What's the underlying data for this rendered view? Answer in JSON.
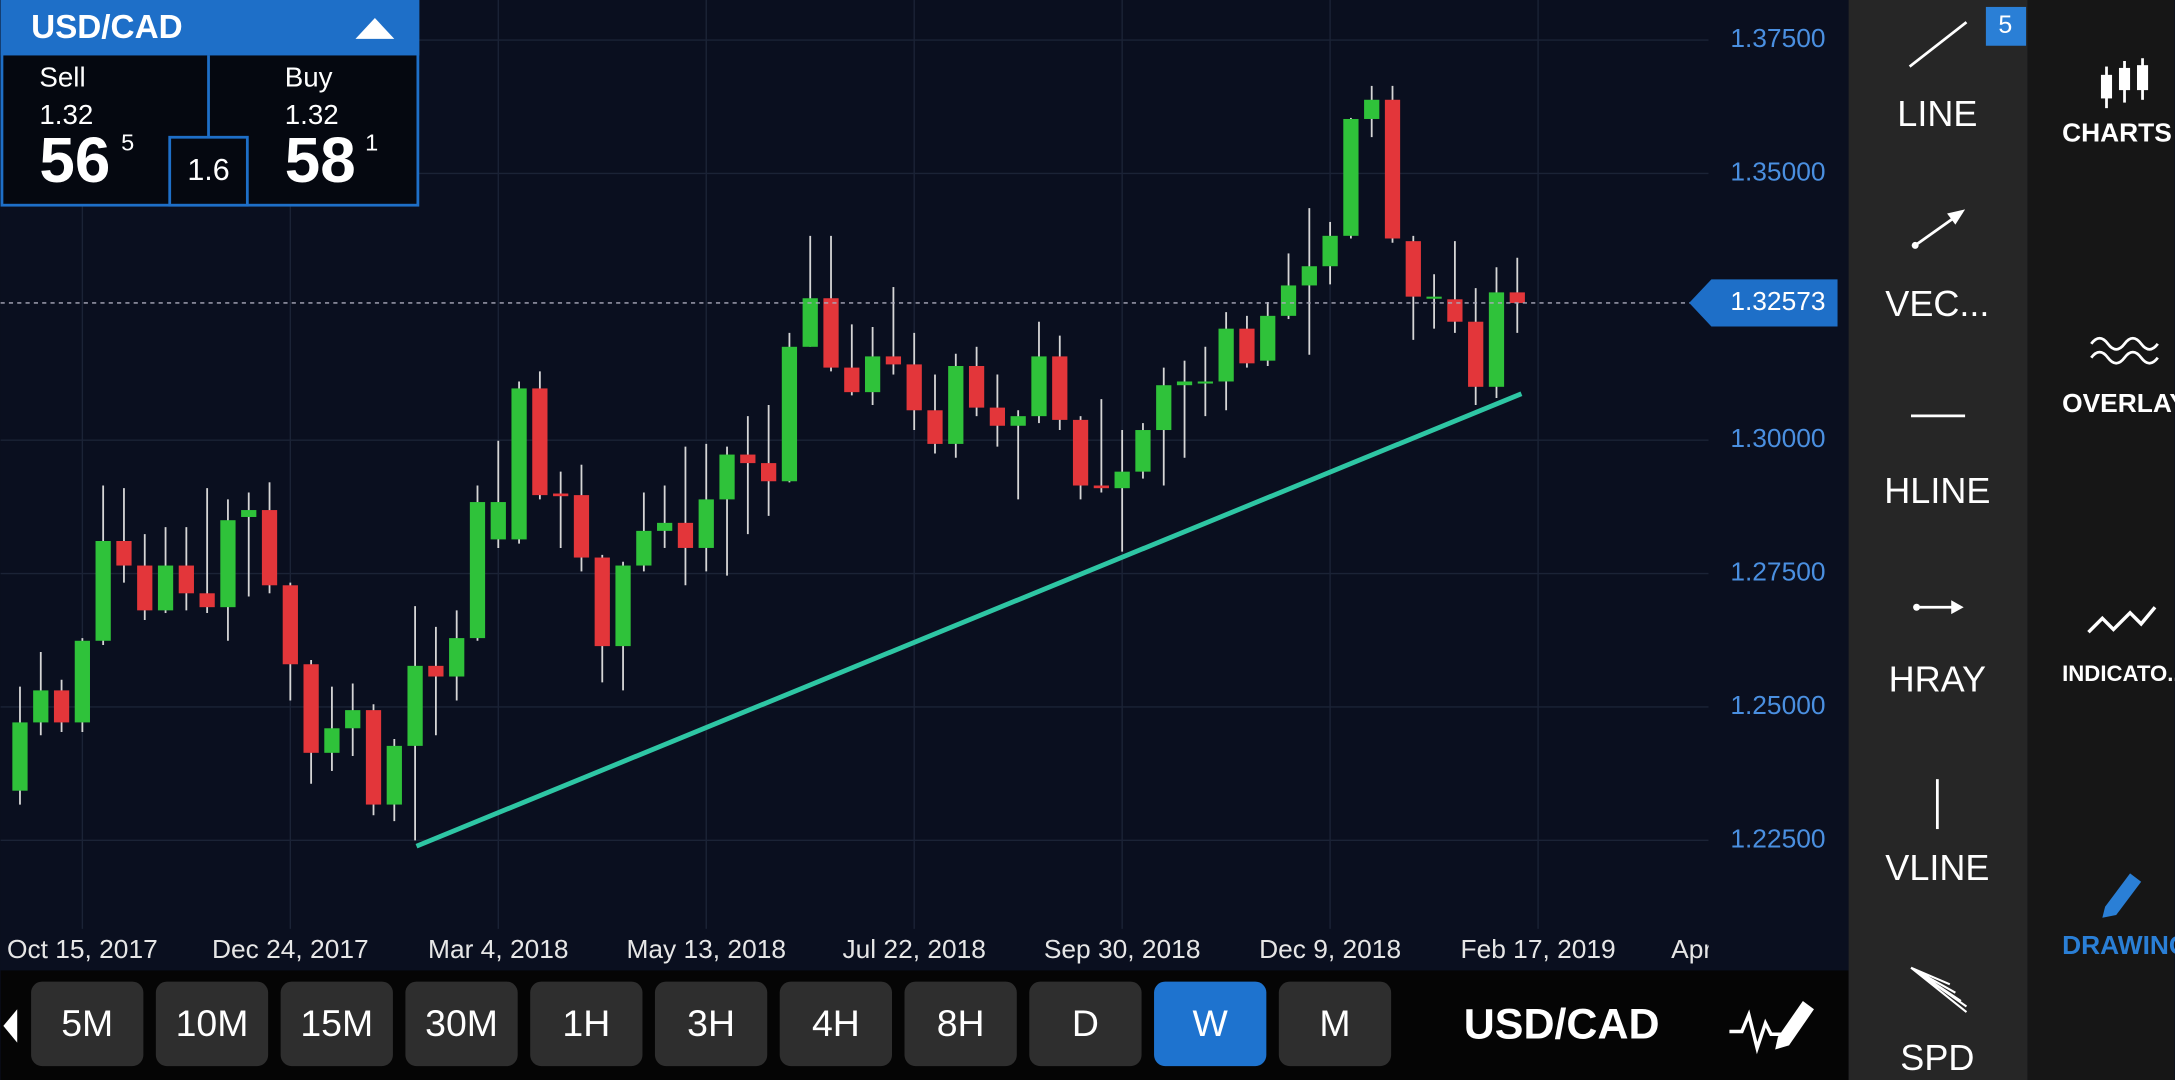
{
  "quote_panel": {
    "symbol": "USD/CAD",
    "sell": {
      "label": "Sell",
      "big_figure": "1.32",
      "pips": "56",
      "fraction": "5"
    },
    "spread": "1.6",
    "buy": {
      "label": "Buy",
      "big_figure": "1.32",
      "pips": "58",
      "fraction": "1"
    }
  },
  "chart_data": {
    "type": "candlestick",
    "open": [
      1.2343,
      1.2471,
      1.2531,
      1.2471,
      1.2624,
      1.2811,
      1.2765,
      1.2681,
      1.2765,
      1.2713,
      1.2687,
      1.2856,
      1.2869,
      1.2728,
      1.258,
      1.2414,
      1.246,
      1.2494,
      1.2317,
      1.2427,
      1.2577,
      1.2557,
      1.2629,
      1.2814,
      1.2814,
      1.3097,
      1.29,
      1.2897,
      1.278,
      1.2614,
      1.2765,
      1.283,
      1.2845,
      1.2798,
      1.2889,
      1.2973,
      1.2957,
      1.2923,
      1.3175,
      1.3266,
      1.3136,
      1.309,
      1.3157,
      1.3142,
      1.3056,
      1.2993,
      1.3139,
      1.3061,
      1.3027,
      1.3045,
      1.3157,
      1.3038,
      1.2915,
      1.291,
      1.2941,
      1.3019,
      1.3103,
      1.3108,
      1.311,
      1.3209,
      1.3149,
      1.3233,
      1.329,
      1.3326,
      1.3383,
      1.3602,
      1.3638,
      1.3373,
      1.3266,
      1.3264,
      1.3222,
      1.31,
      1.3277
    ],
    "high": [
      1.2538,
      1.2603,
      1.2551,
      1.2629,
      1.2915,
      1.291,
      1.2824,
      1.2837,
      1.2837,
      1.291,
      1.2889,
      1.2902,
      1.2921,
      1.2733,
      1.2588,
      1.2538,
      1.2544,
      1.2505,
      1.244,
      1.2689,
      1.265,
      1.2681,
      1.2915,
      1.2999,
      1.311,
      1.3129,
      1.2941,
      1.2954,
      1.2785,
      1.2772,
      1.2902,
      1.2915,
      1.2988,
      1.2993,
      1.2988,
      1.3045,
      1.3066,
      1.3201,
      1.3383,
      1.3383,
      1.3217,
      1.3212,
      1.3287,
      1.3201,
      1.3123,
      1.3162,
      1.3175,
      1.3123,
      1.3056,
      1.3222,
      1.3196,
      1.3045,
      1.3077,
      1.3019,
      1.3032,
      1.3136,
      1.3149,
      1.3175,
      1.324,
      1.3233,
      1.3259,
      1.335,
      1.3435,
      1.3409,
      1.3604,
      1.3664,
      1.3664,
      1.3383,
      1.3311,
      1.3373,
      1.3285,
      1.3324,
      1.3342
    ],
    "low": [
      1.2317,
      1.2447,
      1.2453,
      1.2453,
      1.2616,
      1.2733,
      1.2663,
      1.2676,
      1.2681,
      1.2676,
      1.2624,
      1.2707,
      1.2713,
      1.2512,
      1.2356,
      1.238,
      1.2408,
      1.2297,
      1.2286,
      1.225,
      1.2447,
      1.2512,
      1.2624,
      1.2798,
      1.2806,
      1.2889,
      1.2798,
      1.2754,
      1.2546,
      1.2531,
      1.2754,
      1.2798,
      1.2728,
      1.2754,
      1.2746,
      1.2824,
      1.2858,
      1.2921,
      1.3175,
      1.3129,
      1.3084,
      1.3066,
      1.3123,
      1.3019,
      1.2975,
      1.2967,
      1.3045,
      1.2988,
      1.2889,
      1.3032,
      1.3019,
      1.2889,
      1.2902,
      1.2791,
      1.2928,
      1.2915,
      1.2967,
      1.3045,
      1.3056,
      1.3136,
      1.3139,
      1.3227,
      1.316,
      1.3292,
      1.3378,
      1.3568,
      1.337,
      1.3188,
      1.3209,
      1.3201,
      1.3066,
      1.3079,
      1.3201
    ],
    "close": [
      1.2471,
      1.2531,
      1.2471,
      1.2624,
      1.2811,
      1.2765,
      1.2681,
      1.2765,
      1.2713,
      1.2687,
      1.285,
      1.2869,
      1.2728,
      1.258,
      1.2414,
      1.246,
      1.2494,
      1.2317,
      1.2427,
      1.2577,
      1.2557,
      1.2629,
      1.2884,
      1.2884,
      1.3097,
      1.2897,
      1.2895,
      1.278,
      1.2614,
      1.2765,
      1.283,
      1.2845,
      1.2798,
      1.2889,
      1.2973,
      1.2957,
      1.2923,
      1.3175,
      1.3266,
      1.3136,
      1.309,
      1.3157,
      1.3142,
      1.3056,
      1.2993,
      1.3139,
      1.3061,
      1.3027,
      1.3045,
      1.3157,
      1.3038,
      1.2915,
      1.291,
      1.2941,
      1.3019,
      1.3103,
      1.311,
      1.311,
      1.3209,
      1.3144,
      1.3233,
      1.329,
      1.3326,
      1.3383,
      1.3602,
      1.3638,
      1.3378,
      1.3269,
      1.3269,
      1.3222,
      1.31,
      1.3277,
      1.3257
    ],
    "colors": {
      "up": "#2fc23a",
      "down": "#e3363a",
      "wick": "#d6d6d6"
    },
    "ylim": [
      1.2084,
      1.3825
    ],
    "yticks": [
      {
        "value": 1.225,
        "label": "1.22500"
      },
      {
        "value": 1.25,
        "label": "1.25000"
      },
      {
        "value": 1.275,
        "label": "1.27500"
      },
      {
        "value": 1.3,
        "label": "1.30000"
      },
      {
        "value": 1.35,
        "label": "1.35000"
      },
      {
        "value": 1.375,
        "label": "1.37500"
      }
    ],
    "xtick_labels": [
      "Oct 15, 2017",
      "Dec 24, 2017",
      "Mar 4, 2018",
      "May 13, 2018",
      "Jul 22, 2018",
      "Sep 30, 2018",
      "Dec 9, 2018",
      "Feb 17, 2019",
      "Apr"
    ],
    "last_price": 1.32573,
    "trendline": {
      "start": 1.2239,
      "end": 1.3087,
      "color": "#2ec6a4"
    },
    "grid": true
  },
  "timeframes": {
    "options": [
      "5M",
      "10M",
      "15M",
      "30M",
      "1H",
      "3H",
      "4H",
      "8H",
      "D",
      "W",
      "M"
    ],
    "active": "W"
  },
  "symbol": "USD/CAD",
  "drawing_tools": {
    "badge": "5",
    "items": [
      "LINE",
      "VEC...",
      "HLINE",
      "HRAY",
      "VLINE",
      "SPD"
    ]
  },
  "side_menu": {
    "items": [
      "CHARTS",
      "OVERLAYS",
      "INDICATO...",
      "DRAWING"
    ],
    "active": "DRAWING"
  }
}
